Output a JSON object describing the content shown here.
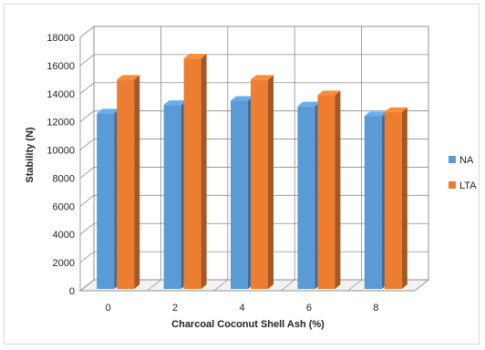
{
  "chart_data": {
    "type": "bar",
    "categories": [
      "0",
      "2",
      "4",
      "6",
      "8"
    ],
    "series": [
      {
        "name": "NA",
        "values": [
          12600,
          13200,
          13500,
          13100,
          12400
        ],
        "color": "#5b9bd5"
      },
      {
        "name": "LTA",
        "values": [
          15000,
          16500,
          15000,
          13900,
          12700
        ],
        "color": "#ed7d31"
      }
    ],
    "xlabel": "Charcoal Coconut Shell Ash (%)",
    "ylabel": "Stability (N)",
    "ylim": [
      0,
      18000
    ],
    "yticks": [
      "0",
      "2000",
      "4000",
      "6000",
      "8000",
      "10000",
      "12000",
      "14000",
      "16000",
      "18000"
    ],
    "grid": true,
    "style": "3d-clustered-column",
    "legend": "right"
  }
}
